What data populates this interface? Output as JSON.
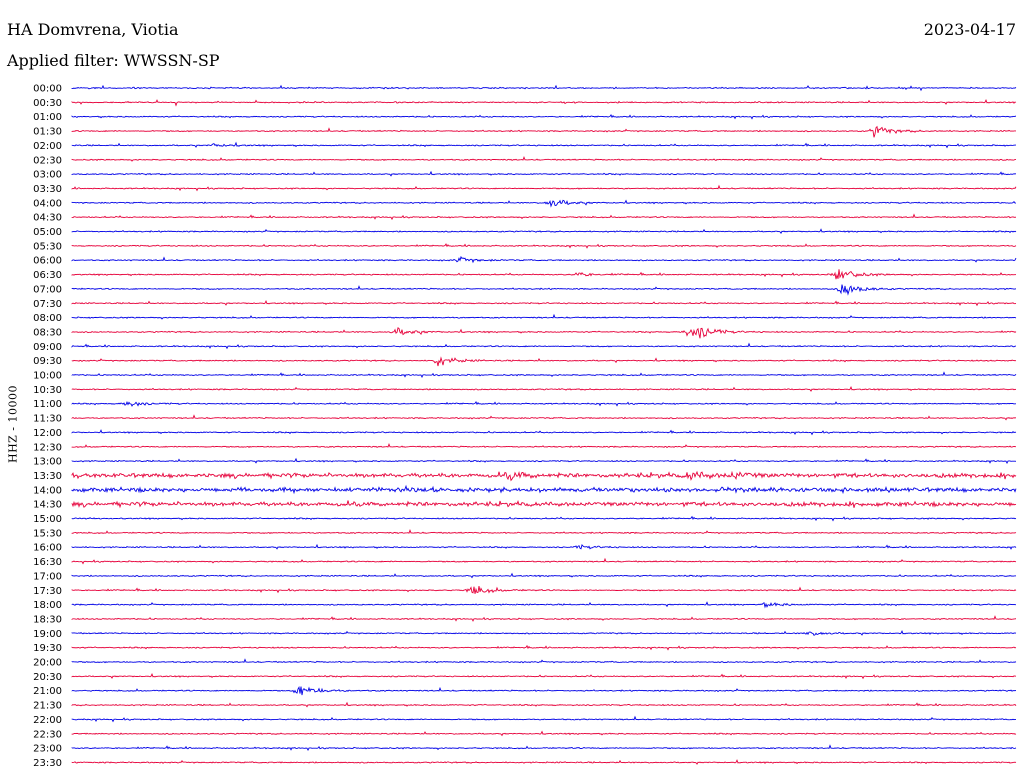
{
  "header": {
    "station": "HA Domvrena, Viotia",
    "date": "2023-04-17",
    "filter": "Applied filter: WWSSN-SP"
  },
  "colors": {
    "even": "#0000e6",
    "odd": "#e6003a"
  },
  "chart_data": {
    "type": "line",
    "title": "HA Domvrena, Viotia",
    "subtitle": "Applied filter: WWSSN-SP",
    "ylabel": "HHZ - 10000",
    "row_labels": [
      "00:00",
      "00:30",
      "01:00",
      "01:30",
      "02:00",
      "02:30",
      "03:00",
      "03:30",
      "04:00",
      "04:30",
      "05:00",
      "05:30",
      "06:00",
      "06:30",
      "07:00",
      "07:30",
      "08:00",
      "08:30",
      "09:00",
      "09:30",
      "10:00",
      "10:30",
      "11:00",
      "11:30",
      "12:00",
      "12:30",
      "13:00",
      "13:30",
      "14:00",
      "14:30",
      "15:00",
      "15:30",
      "16:00",
      "16:30",
      "17:00",
      "17:30",
      "18:00",
      "18:30",
      "19:00",
      "19:30",
      "20:00",
      "20:30",
      "21:00",
      "21:30",
      "22:00",
      "22:30",
      "23:00",
      "23:30"
    ],
    "row_minutes": 30,
    "events": [
      {
        "row": 3,
        "minute": 25.5,
        "amplitude": 9
      },
      {
        "row": 4,
        "minute": 4.5,
        "amplitude": 3
      },
      {
        "row": 8,
        "minute": 15.2,
        "amplitude": 8
      },
      {
        "row": 12,
        "minute": 12.3,
        "amplitude": 4
      },
      {
        "row": 13,
        "minute": 16.0,
        "amplitude": 4
      },
      {
        "row": 13,
        "minute": 24.3,
        "amplitude": 12
      },
      {
        "row": 14,
        "minute": 24.5,
        "amplitude": 12
      },
      {
        "row": 17,
        "minute": 10.3,
        "amplitude": 7
      },
      {
        "row": 17,
        "minute": 19.5,
        "amplitude": 6
      },
      {
        "row": 17,
        "minute": 19.9,
        "amplitude": 9
      },
      {
        "row": 19,
        "minute": 11.6,
        "amplitude": 9
      },
      {
        "row": 22,
        "minute": 1.7,
        "amplitude": 5
      },
      {
        "row": 27,
        "minute": 13.9,
        "amplitude": 5
      },
      {
        "row": 27,
        "minute": 19.6,
        "amplitude": 6
      },
      {
        "row": 27,
        "minute": 21.0,
        "amplitude": 4
      },
      {
        "row": 32,
        "minute": 16.1,
        "amplitude": 3
      },
      {
        "row": 35,
        "minute": 12.7,
        "amplitude": 8
      },
      {
        "row": 36,
        "minute": 22.0,
        "amplitude": 4
      },
      {
        "row": 38,
        "minute": 23.4,
        "amplitude": 4
      },
      {
        "row": 42,
        "minute": 7.2,
        "amplitude": 12
      }
    ]
  }
}
